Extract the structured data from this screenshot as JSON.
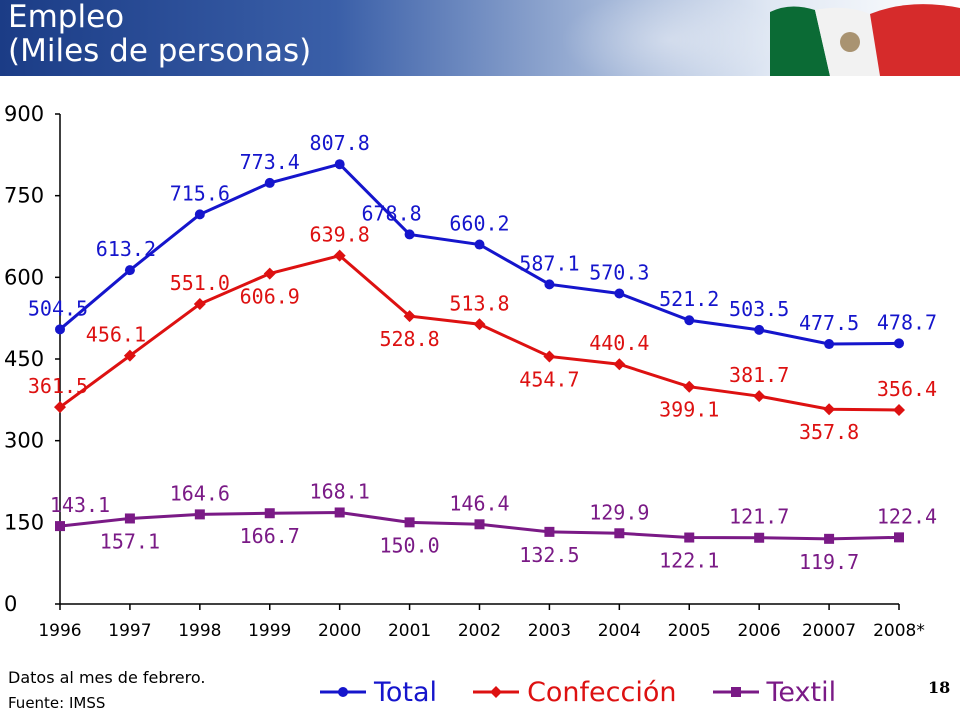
{
  "header": {
    "title": "Empleo\n(Miles de personas)"
  },
  "colors": {
    "total": "#1515cc",
    "confeccion": "#dd1111",
    "textil": "#7a1a86",
    "axis": "#000000",
    "header_blue": "#1b3c86"
  },
  "chart_data": {
    "type": "line",
    "categories": [
      "1996",
      "1997",
      "1998",
      "1999",
      "2000",
      "2001",
      "2002",
      "2003",
      "2004",
      "2005",
      "2006",
      "20007",
      "2008*"
    ],
    "ylim": [
      0,
      900
    ],
    "yticks": [
      0,
      150,
      300,
      450,
      600,
      750,
      900
    ],
    "grid": false,
    "legend_position": "bottom",
    "series": [
      {
        "name": "Total",
        "marker": "circle",
        "values": [
          504.5,
          613.2,
          715.6,
          773.4,
          807.8,
          678.8,
          660.2,
          587.1,
          570.3,
          521.2,
          503.5,
          477.5,
          478.7
        ],
        "labels": [
          "504.5",
          "613.2",
          "715.6",
          "773.4",
          "807.8",
          "678.8",
          "660.2",
          "587.1",
          "570.3",
          "521.2",
          "503.5",
          "477.5",
          "478.7"
        ]
      },
      {
        "name": "Confección",
        "marker": "diamond",
        "values": [
          361.5,
          456.1,
          551.0,
          606.9,
          639.8,
          528.8,
          513.8,
          454.7,
          440.4,
          399.1,
          381.7,
          357.8,
          356.4
        ],
        "labels": [
          "361.5",
          "456.1",
          "551.0",
          "606.9",
          "639.8",
          "528.8",
          "513.8",
          "454.7",
          "440.4",
          "399.1",
          "381.7",
          "357.8",
          "356.4"
        ]
      },
      {
        "name": "Textil",
        "marker": "square",
        "values": [
          143.1,
          157.1,
          164.6,
          166.7,
          168.1,
          150.0,
          146.4,
          132.5,
          129.9,
          122.1,
          121.7,
          119.7,
          122.4
        ],
        "labels": [
          "143.1",
          "157.1",
          "164.6",
          "166.7",
          "168.1",
          "150.0",
          "146.4",
          "132.5",
          "129.9",
          "122.1",
          "121.7",
          "119.7",
          "122.4"
        ]
      }
    ]
  },
  "footnote": "Datos al mes de febrero.",
  "source": "Fuente: IMSS",
  "page_number": "18"
}
